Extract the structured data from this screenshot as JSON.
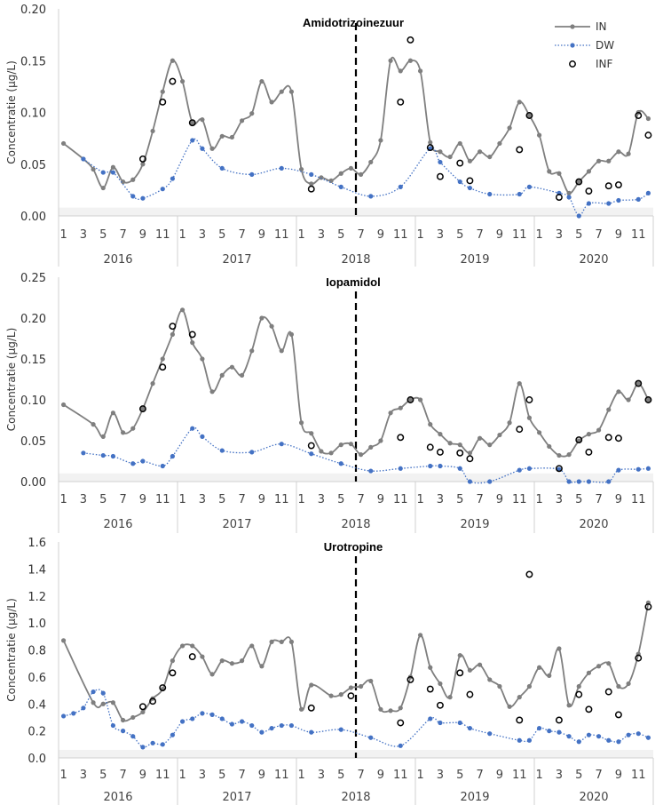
{
  "chart_data": [
    {
      "type": "line",
      "title": "Amidotrizoinezuur",
      "ylabel": "Concentratie (µg/L)",
      "xlabel": "",
      "ylim": [
        0,
        0.2
      ],
      "yticks": [
        "0.00",
        "0.05",
        "0.10",
        "0.15",
        "0.20"
      ],
      "ytick_values": [
        0,
        0.05,
        0.1,
        0.15,
        0.2
      ],
      "month_ticks": [
        "1",
        "3",
        "5",
        "7",
        "9",
        "11"
      ],
      "years": [
        "2016",
        "2017",
        "2018",
        "2019",
        "2020"
      ],
      "vline_month_index": 29.5,
      "series": [
        {
          "name": "IN",
          "style": "line",
          "values": [
            0.07,
            null,
            0.055,
            0.045,
            0.027,
            0.047,
            0.033,
            0.035,
            0.05,
            0.082,
            0.12,
            0.15,
            0.13,
            0.09,
            0.093,
            0.065,
            0.077,
            0.076,
            0.092,
            0.099,
            0.13,
            0.11,
            0.12,
            0.12,
            0.045,
            0.031,
            0.037,
            0.034,
            0.041,
            0.046,
            0.04,
            0.052,
            0.073,
            0.15,
            0.14,
            0.15,
            0.14,
            0.071,
            0.062,
            0.057,
            0.07,
            0.053,
            0.062,
            0.057,
            0.07,
            0.085,
            0.11,
            0.097,
            0.078,
            0.043,
            0.041,
            0.022,
            0.033,
            0.043,
            0.053,
            0.053,
            0.062,
            0.06,
            0.1,
            0.094
          ]
        },
        {
          "name": "DW",
          "style": "dotted",
          "values": [
            null,
            null,
            0.055,
            null,
            0.042,
            0.042,
            null,
            0.019,
            0.017,
            null,
            0.026,
            0.036,
            null,
            0.073,
            0.065,
            null,
            0.046,
            null,
            null,
            0.04,
            null,
            null,
            0.046,
            null,
            null,
            0.04,
            null,
            null,
            0.028,
            null,
            null,
            0.019,
            null,
            null,
            0.028,
            null,
            null,
            0.065,
            0.052,
            null,
            0.033,
            0.027,
            null,
            0.021,
            null,
            null,
            0.021,
            0.028,
            null,
            null,
            0.022,
            0.018,
            0.0,
            0.012,
            null,
            0.012,
            0.015,
            null,
            0.016,
            0.022
          ]
        },
        {
          "name": "INF",
          "style": "marker",
          "values": [
            null,
            null,
            null,
            null,
            null,
            null,
            null,
            null,
            0.055,
            null,
            0.11,
            0.13,
            null,
            0.09,
            null,
            null,
            null,
            null,
            null,
            null,
            null,
            null,
            null,
            null,
            null,
            0.026,
            null,
            null,
            null,
            null,
            null,
            null,
            null,
            null,
            0.11,
            0.17,
            null,
            0.066,
            0.038,
            null,
            0.051,
            0.034,
            null,
            null,
            null,
            null,
            0.064,
            0.097,
            null,
            null,
            0.018,
            null,
            0.033,
            0.024,
            null,
            0.029,
            0.03,
            null,
            0.097,
            0.078
          ]
        }
      ],
      "legend": {
        "position": "top-right",
        "entries": [
          "IN",
          "DW",
          "INF"
        ]
      }
    },
    {
      "type": "line",
      "title": "Iopamidol",
      "ylabel": "Concentratie (µg/L)",
      "xlabel": "",
      "ylim": [
        0,
        0.25
      ],
      "yticks": [
        "0.00",
        "0.05",
        "0.10",
        "0.15",
        "0.20",
        "0.25"
      ],
      "ytick_values": [
        0,
        0.05,
        0.1,
        0.15,
        0.2,
        0.25
      ],
      "month_ticks": [
        "1",
        "3",
        "5",
        "7",
        "9",
        "11"
      ],
      "years": [
        "2016",
        "2017",
        "2018",
        "2019",
        "2020"
      ],
      "vline_month_index": 29.5,
      "series": [
        {
          "name": "IN",
          "style": "line",
          "values": [
            0.094,
            null,
            null,
            0.07,
            0.055,
            0.084,
            0.06,
            0.065,
            0.089,
            0.12,
            0.15,
            0.18,
            0.21,
            0.17,
            0.15,
            0.11,
            0.13,
            0.14,
            0.13,
            0.16,
            0.2,
            0.19,
            0.16,
            0.18,
            0.072,
            0.059,
            0.037,
            0.035,
            0.045,
            0.046,
            0.033,
            0.042,
            0.05,
            0.084,
            0.09,
            0.1,
            0.1,
            0.07,
            0.058,
            0.047,
            0.045,
            0.035,
            0.053,
            0.045,
            0.057,
            0.072,
            0.12,
            0.078,
            0.06,
            0.043,
            0.032,
            0.033,
            0.05,
            0.058,
            0.063,
            0.088,
            0.11,
            0.1,
            0.12,
            0.1
          ]
        },
        {
          "name": "DW",
          "style": "dotted",
          "values": [
            null,
            null,
            0.035,
            null,
            0.032,
            0.031,
            null,
            0.022,
            0.025,
            null,
            0.019,
            0.031,
            null,
            0.065,
            0.055,
            null,
            0.038,
            null,
            null,
            0.036,
            null,
            null,
            0.046,
            null,
            null,
            0.034,
            null,
            null,
            0.022,
            null,
            null,
            0.013,
            null,
            null,
            0.016,
            null,
            null,
            0.019,
            0.019,
            null,
            0.016,
            0.0,
            null,
            0.0,
            null,
            null,
            0.014,
            0.016,
            null,
            null,
            0.015,
            0.0,
            0.0,
            0.0,
            null,
            0.0,
            0.014,
            null,
            0.015,
            0.016
          ]
        },
        {
          "name": "INF",
          "style": "marker",
          "values": [
            null,
            null,
            null,
            null,
            null,
            null,
            null,
            null,
            0.089,
            null,
            0.14,
            0.19,
            null,
            0.18,
            null,
            null,
            null,
            null,
            null,
            null,
            null,
            null,
            null,
            null,
            null,
            0.044,
            null,
            null,
            null,
            null,
            null,
            null,
            null,
            null,
            0.054,
            0.1,
            null,
            0.042,
            0.036,
            null,
            0.035,
            0.028,
            null,
            null,
            null,
            null,
            0.064,
            0.1,
            null,
            null,
            0.016,
            null,
            0.051,
            0.036,
            null,
            0.054,
            0.053,
            null,
            0.12,
            0.1
          ]
        }
      ],
      "legend": null
    },
    {
      "type": "line",
      "title": "Urotropine",
      "ylabel": "Concentratie (µg/L)",
      "xlabel": "",
      "ylim": [
        0,
        1.6
      ],
      "yticks": [
        "0.0",
        "0.2",
        "0.4",
        "0.6",
        "0.8",
        "1.0",
        "1.2",
        "1.4",
        "1.6"
      ],
      "ytick_values": [
        0,
        0.2,
        0.4,
        0.6,
        0.8,
        1.0,
        1.2,
        1.4,
        1.6
      ],
      "month_ticks": [
        "1",
        "3",
        "5",
        "7",
        "9",
        "11"
      ],
      "years": [
        "2016",
        "2017",
        "2018",
        "2019",
        "2020"
      ],
      "vline_month_index": 29.5,
      "series": [
        {
          "name": "IN",
          "style": "line",
          "values": [
            0.87,
            null,
            null,
            0.41,
            0.4,
            0.41,
            0.28,
            0.3,
            0.34,
            0.44,
            0.51,
            0.72,
            0.83,
            0.83,
            0.75,
            0.62,
            0.72,
            0.7,
            0.72,
            0.83,
            0.68,
            0.86,
            0.86,
            0.86,
            0.36,
            0.54,
            null,
            0.46,
            0.47,
            0.52,
            0.53,
            0.57,
            0.36,
            0.35,
            0.37,
            0.6,
            0.91,
            0.67,
            0.55,
            0.45,
            0.76,
            0.65,
            0.69,
            0.58,
            0.53,
            0.38,
            0.45,
            0.53,
            0.67,
            0.61,
            0.81,
            0.39,
            0.53,
            0.63,
            0.68,
            0.7,
            0.53,
            0.55,
            0.77,
            1.15
          ]
        },
        {
          "name": "DW",
          "style": "dotted",
          "values": [
            0.31,
            0.33,
            0.37,
            0.49,
            0.48,
            0.24,
            0.2,
            0.16,
            0.08,
            0.11,
            0.1,
            0.17,
            0.27,
            0.29,
            0.33,
            0.32,
            0.29,
            0.25,
            0.27,
            0.24,
            0.19,
            0.22,
            0.24,
            0.24,
            null,
            0.19,
            null,
            null,
            0.21,
            null,
            null,
            0.15,
            null,
            null,
            0.09,
            null,
            null,
            0.29,
            0.26,
            null,
            0.26,
            0.22,
            null,
            0.18,
            null,
            null,
            0.13,
            0.13,
            0.22,
            0.2,
            0.19,
            0.16,
            0.12,
            0.17,
            0.16,
            0.13,
            0.12,
            0.17,
            0.18,
            0.15
          ]
        },
        {
          "name": "INF",
          "style": "marker",
          "values": [
            null,
            null,
            null,
            null,
            null,
            null,
            null,
            null,
            0.38,
            0.42,
            0.52,
            0.63,
            null,
            0.75,
            null,
            null,
            null,
            null,
            null,
            null,
            null,
            null,
            null,
            null,
            null,
            0.37,
            null,
            null,
            null,
            0.46,
            null,
            null,
            null,
            null,
            0.26,
            0.58,
            null,
            0.51,
            0.39,
            null,
            0.63,
            0.47,
            null,
            null,
            null,
            null,
            0.28,
            1.36,
            null,
            null,
            0.28,
            null,
            0.47,
            0.36,
            null,
            0.49,
            0.32,
            null,
            0.74,
            1.12
          ]
        }
      ],
      "legend": null
    }
  ],
  "colors": {
    "IN": "#7f7f7f",
    "DW": "#4472c4",
    "INF": "#000000",
    "vline": "#000000",
    "axis": "#d0d0d0",
    "band": "#f2f2f2"
  }
}
